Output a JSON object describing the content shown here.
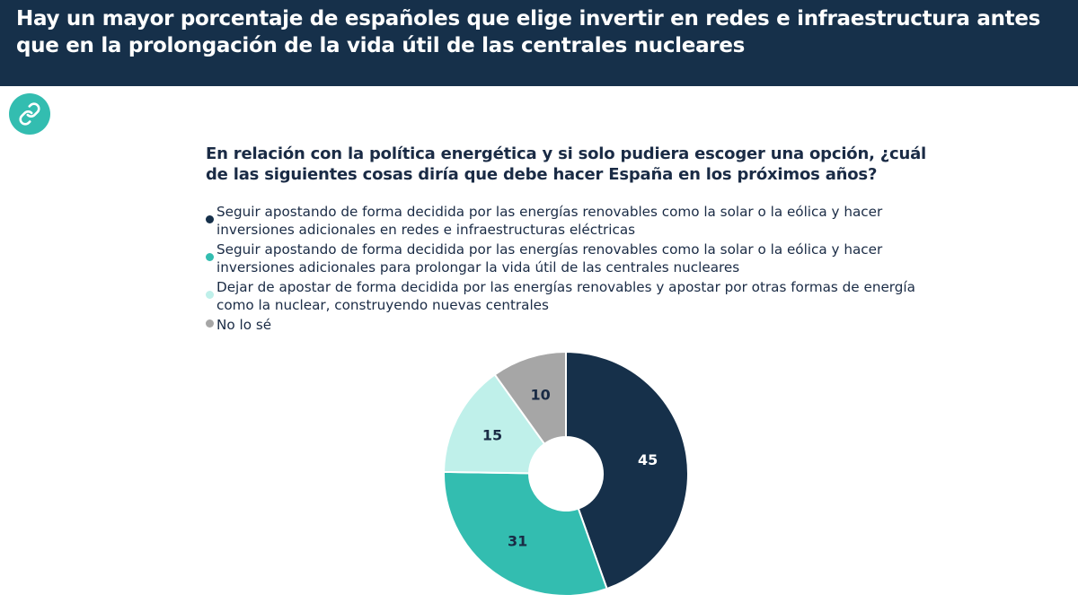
{
  "header": {
    "title": "Hay un mayor porcentaje de españoles que elige invertir en redes e infraestructura antes que en la prolongación de la vida útil de las centrales nucleares"
  },
  "link_button": {
    "icon": "link-icon"
  },
  "colors": {
    "header_bg": "#16304a",
    "link_button": "#33bdb0",
    "text": "#1a2b45"
  },
  "chart_data": {
    "type": "pie",
    "style": "donut",
    "title": "En relación con la política energética y si solo pudiera escoger una opción, ¿cuál de las siguientes cosas diría que debe hacer España en los próximos años?",
    "legend_position": "top",
    "series": [
      {
        "name": "Seguir apostando de forma decidida por las energías renovables como la solar o la eólica y hacer inversiones adicionales en redes e infraestructuras eléctricas",
        "value": 45,
        "label": "45",
        "color": "#16304a",
        "label_color": "#ffffff"
      },
      {
        "name": "Seguir apostando de forma decidida por las energías renovables como la solar o la eólica y hacer inversiones adicionales para prolongar la vida útil de las centrales nucleares",
        "value": 31,
        "label": "31",
        "color": "#33bdb0",
        "label_color": "#1a2b45"
      },
      {
        "name": "Dejar de apostar de forma decidida por las energías renovables y apostar por otras formas de energía como la nuclear, construyendo nuevas centrales",
        "value": 15,
        "label": "15",
        "color": "#bff0ea",
        "label_color": "#1a2b45"
      },
      {
        "name": "No lo sé",
        "value": 10,
        "label": "10",
        "color": "#a6a6a6",
        "label_color": "#1a2b45"
      }
    ]
  }
}
